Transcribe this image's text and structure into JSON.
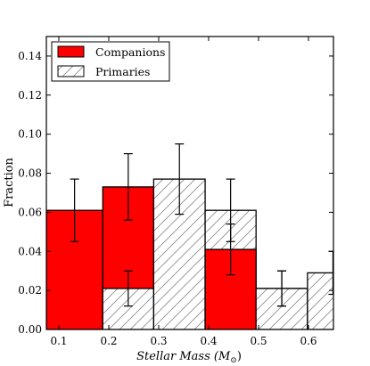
{
  "chart_data": {
    "type": "bar",
    "title": "",
    "xlabel": "Stellar Mass (M",
    "xlabel_sub": "⊙",
    "xlabel_close": ")",
    "ylabel": "Fraction",
    "xlim": [
      0.075,
      0.65
    ],
    "ylim": [
      0.0,
      0.15
    ],
    "xticks": [
      0.1,
      0.2,
      0.3,
      0.4,
      0.5,
      0.6
    ],
    "xtick_labels": [
      "0.1",
      "0.2",
      "0.3",
      "0.4",
      "0.5",
      "0.6"
    ],
    "yticks": [
      0.0,
      0.02,
      0.04,
      0.06,
      0.08,
      0.1,
      0.12,
      0.14
    ],
    "ytick_labels": [
      "0.00",
      "0.02",
      "0.04",
      "0.06",
      "0.08",
      "0.10",
      "0.12",
      "0.14"
    ],
    "bin_edges": [
      0.075,
      0.188,
      0.29,
      0.393,
      0.495,
      0.598,
      0.7
    ],
    "series": [
      {
        "name": "Companions",
        "color": "#ff0000",
        "style": "filled",
        "values": [
          0.061,
          0.073,
          0.0,
          0.041,
          0.021,
          0.0
        ],
        "errors": [
          0.016,
          0.017,
          0.0,
          0.013,
          0.009,
          0.0
        ]
      },
      {
        "name": "Primaries",
        "color": "#ffffff",
        "style": "hatched",
        "values": [
          0.0,
          0.021,
          0.077,
          0.061,
          0.021,
          0.029
        ],
        "errors": [
          0.0,
          0.009,
          0.018,
          0.016,
          0.009,
          0.011
        ]
      }
    ],
    "legend_position": "top-left",
    "grid": false
  }
}
